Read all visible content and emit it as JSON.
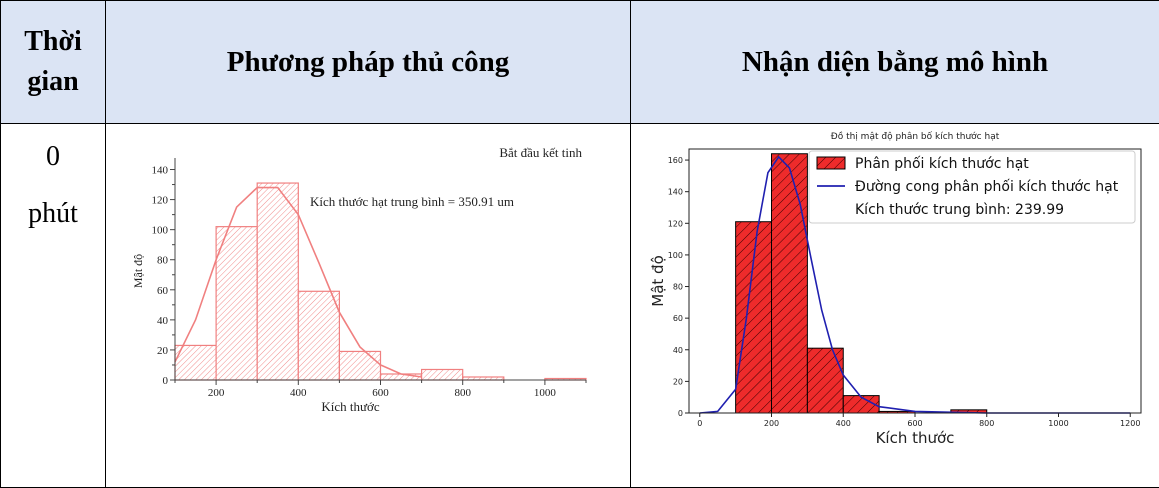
{
  "table": {
    "headers": [
      "Thời gian",
      "Phương pháp thủ công",
      "Nhận diện bằng mô hình"
    ],
    "rows": [
      {
        "time_value": "0",
        "time_unit": "phút"
      }
    ]
  },
  "chart_data": [
    {
      "type": "bar",
      "title": "Bắt đầu kết tinh",
      "xlabel": "Kích thước",
      "ylabel": "Mật độ",
      "annotation": "Kích thước hạt trung bình = 350.91 um",
      "xlim": [
        100,
        1100
      ],
      "ylim": [
        0,
        145
      ],
      "xticks": [
        200,
        400,
        600,
        800,
        1000
      ],
      "yticks": [
        0,
        20,
        40,
        60,
        80,
        100,
        120,
        140
      ],
      "bin_edges": [
        100,
        200,
        300,
        400,
        500,
        600,
        700,
        800,
        900,
        1000,
        1100
      ],
      "values": [
        23,
        102,
        131,
        59,
        19,
        4,
        7,
        2,
        0,
        1
      ],
      "curve": {
        "x": [
          100,
          150,
          200,
          250,
          300,
          350,
          400,
          450,
          500,
          550,
          600,
          650,
          700
        ],
        "y": [
          12,
          40,
          80,
          115,
          128,
          128,
          110,
          78,
          45,
          22,
          10,
          4,
          2
        ]
      },
      "colors": {
        "bar": "#f08080",
        "curve": "#f08080"
      }
    },
    {
      "type": "bar",
      "title": "Đồ thị mật độ phân bố kích thước hạt",
      "xlabel": "Kích thước",
      "ylabel": "Mật độ",
      "xlim": [
        -30,
        1230
      ],
      "ylim": [
        0,
        167
      ],
      "xticks": [
        0,
        200,
        400,
        600,
        800,
        1000,
        1200
      ],
      "yticks": [
        0,
        20,
        40,
        60,
        80,
        100,
        120,
        140,
        160
      ],
      "bin_edges": [
        100,
        200,
        300,
        400,
        500,
        600,
        700,
        800
      ],
      "values": [
        121,
        164,
        41,
        11,
        1,
        0,
        2
      ],
      "curve": {
        "x": [
          0,
          50,
          100,
          130,
          160,
          190,
          220,
          250,
          280,
          310,
          340,
          370,
          400,
          450,
          500,
          600,
          800,
          1000,
          1200
        ],
        "y": [
          0,
          1,
          15,
          60,
          115,
          152,
          162,
          155,
          132,
          98,
          65,
          40,
          24,
          10,
          4,
          1,
          0,
          0,
          0
        ]
      },
      "legend": {
        "position": "top-right",
        "entries": [
          "Phân phối kích thước hạt",
          "Đường cong phân phối kích thước hạt",
          "Kích thước trung bình: 239.99"
        ]
      },
      "colors": {
        "bar": "#ee2b2b",
        "curve": "#2020b0"
      }
    }
  ]
}
